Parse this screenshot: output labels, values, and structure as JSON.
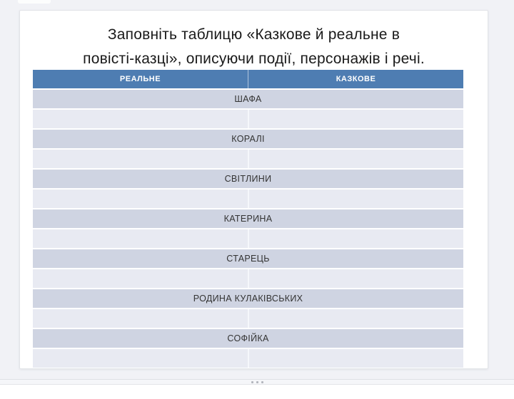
{
  "slide": {
    "title": {
      "lines": [
        "Заповніть таблицю «Казкове й реальне в",
        "повісті-казці», описуючи події, персонажів і речі."
      ]
    }
  },
  "table": {
    "headers": [
      {
        "label": "РЕАЛЬНЕ"
      },
      {
        "label": "КАЗКОВЕ"
      }
    ],
    "rows": [
      {
        "type": "merged",
        "label": "ШАФА"
      },
      {
        "type": "empty",
        "label": ""
      },
      {
        "type": "merged",
        "label": "КОРАЛІ"
      },
      {
        "type": "empty",
        "label": ""
      },
      {
        "type": "merged",
        "label": "СВІТЛИНИ"
      },
      {
        "type": "empty",
        "label": ""
      },
      {
        "type": "merged",
        "label": "КАТЕРИНА"
      },
      {
        "type": "empty",
        "label": ""
      },
      {
        "type": "merged",
        "label": "СТАРЕЦЬ"
      },
      {
        "type": "empty",
        "label": ""
      },
      {
        "type": "merged",
        "label": "РОДИНА КУЛАКІВСЬКИХ"
      },
      {
        "type": "empty",
        "label": ""
      },
      {
        "type": "merged",
        "label": "СОФІЙКА"
      },
      {
        "type": "empty",
        "label": ""
      }
    ]
  },
  "colors": {
    "canvas_bg": "#f1f2f6",
    "header_bg": "#4e7db2",
    "row_filled_bg": "#cfd4e2",
    "row_empty_bg": "#e8eaf2",
    "title_text": "#1a1a1a",
    "row_text": "#333333"
  }
}
